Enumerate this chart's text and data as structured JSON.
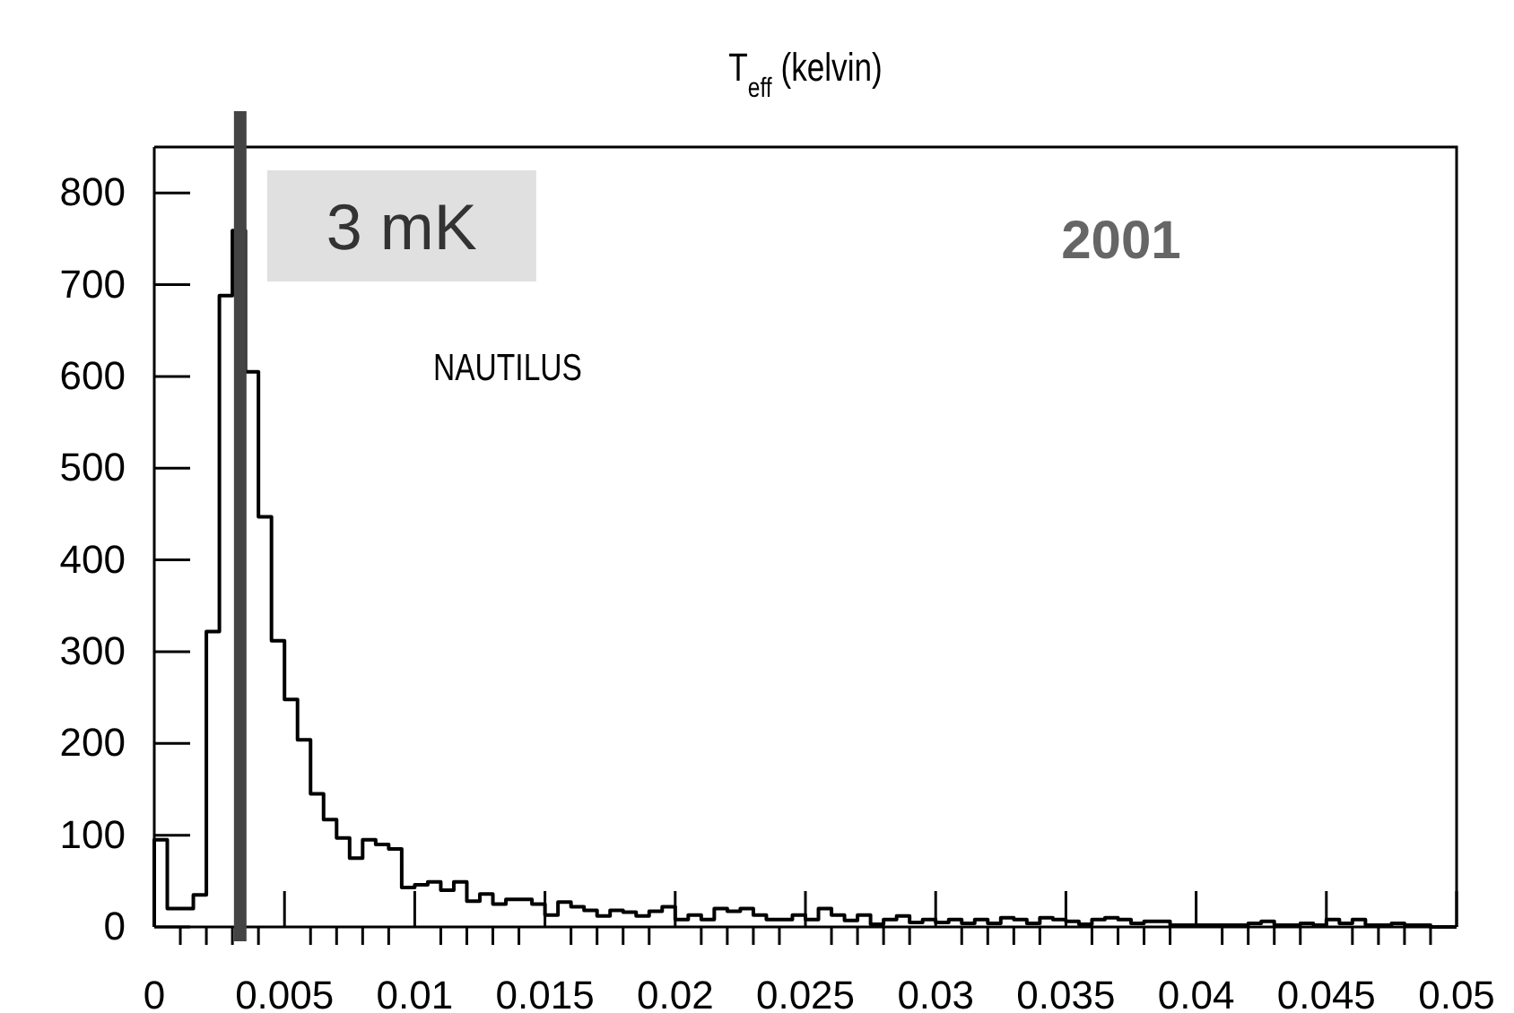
{
  "chart_data": {
    "type": "histogram",
    "title": "T$_{eff}$ (kelvin)",
    "color": "#000000",
    "bins": [
      0,
      0.0005,
      0.001,
      0.0015,
      0.002,
      0.0025,
      0.003,
      0.0035,
      0.004,
      0.0045,
      0.005,
      0.0055,
      0.006,
      0.0065,
      0.007,
      0.0075,
      0.008,
      0.0085,
      0.009,
      0.0095,
      0.01,
      0.0105,
      0.011,
      0.0115,
      0.012,
      0.0125,
      0.013,
      0.0135,
      0.014,
      0.0145,
      0.015,
      0.0155,
      0.016,
      0.0165,
      0.017,
      0.0175,
      0.018,
      0.0185,
      0.019,
      0.0195,
      0.02,
      0.0205,
      0.021,
      0.0215,
      0.022,
      0.0225,
      0.023,
      0.0235,
      0.024,
      0.0245,
      0.025,
      0.0255,
      0.026,
      0.0265,
      0.027,
      0.0275,
      0.028,
      0.0285,
      0.029,
      0.0295,
      0.03,
      0.0305,
      0.031,
      0.0315,
      0.032,
      0.0325,
      0.033,
      0.0335,
      0.034,
      0.0345,
      0.035,
      0.0355,
      0.036,
      0.0365,
      0.037,
      0.0375,
      0.038,
      0.0385,
      0.039,
      0.0395,
      0.04,
      0.0405,
      0.041,
      0.0415,
      0.042,
      0.0425,
      0.043,
      0.0435,
      0.044,
      0.0445,
      0.045,
      0.0455,
      0.046,
      0.0465,
      0.047,
      0.0475,
      0.048,
      0.0485,
      0.049,
      0.0495,
      0.05
    ],
    "values": [
      95,
      20,
      20,
      35,
      322,
      688,
      759,
      605,
      447,
      312,
      248,
      204,
      145,
      117,
      97,
      75,
      95,
      90,
      85,
      43,
      46,
      49,
      40,
      49,
      28,
      36,
      25,
      30,
      30,
      25,
      13,
      27,
      22,
      18,
      12,
      18,
      16,
      12,
      17,
      22,
      8,
      13,
      8,
      20,
      17,
      20,
      13,
      8,
      8,
      13,
      8,
      20,
      13,
      7,
      13,
      3,
      8,
      12,
      5,
      8,
      5,
      8,
      4,
      8,
      4,
      10,
      8,
      4,
      10,
      8,
      6,
      3,
      8,
      10,
      8,
      4,
      6,
      6,
      2,
      2,
      2,
      2,
      2,
      2,
      4,
      6,
      2,
      2,
      4,
      2,
      8,
      4,
      8,
      2,
      2,
      4,
      2,
      2,
      0,
      0
    ],
    "xlim": [
      0,
      0.05
    ],
    "xticks": [
      0,
      {
        "value": 0.001,
        "label": null
      },
      {
        "value": 0.002,
        "label": null
      },
      {
        "value": 0.003,
        "label": null
      },
      {
        "value": 0.004,
        "label": null
      },
      0.005,
      {
        "value": 0.006,
        "label": null
      },
      {
        "value": 0.007,
        "label": null
      },
      {
        "value": 0.008,
        "label": null
      },
      {
        "value": 0.009,
        "label": null
      },
      0.01,
      {
        "value": 0.011,
        "label": null
      },
      {
        "value": 0.012,
        "label": null
      },
      {
        "value": 0.013,
        "label": null
      },
      {
        "value": 0.014,
        "label": null
      },
      0.015,
      {
        "value": 0.016,
        "label": null
      },
      {
        "value": 0.017,
        "label": null
      },
      {
        "value": 0.018,
        "label": null
      },
      {
        "value": 0.019,
        "label": null
      },
      0.02,
      {
        "value": 0.021,
        "label": null
      },
      {
        "value": 0.022,
        "label": null
      },
      {
        "value": 0.023,
        "label": null
      },
      {
        "value": 0.024,
        "label": null
      },
      0.025,
      {
        "value": 0.026,
        "label": null
      },
      {
        "value": 0.027,
        "label": null
      },
      {
        "value": 0.028,
        "label": null
      },
      {
        "value": 0.029,
        "label": null
      },
      0.03,
      {
        "value": 0.031,
        "label": null
      },
      {
        "value": 0.032,
        "label": null
      },
      {
        "value": 0.033,
        "label": null
      },
      {
        "value": 0.034,
        "label": null
      },
      0.035,
      {
        "value": 0.036,
        "label": null
      },
      {
        "value": 0.037,
        "label": null
      },
      {
        "value": 0.038,
        "label": null
      },
      {
        "value": 0.039,
        "label": null
      },
      0.04,
      {
        "value": 0.041,
        "label": null
      },
      {
        "value": 0.042,
        "label": null
      },
      {
        "value": 0.043,
        "label": null
      },
      {
        "value": 0.044,
        "label": null
      },
      0.045,
      {
        "value": 0.046,
        "label": null
      },
      {
        "value": 0.047,
        "label": null
      },
      {
        "value": 0.048,
        "label": null
      },
      {
        "value": 0.049,
        "label": null
      },
      0.05
    ],
    "ylim": [
      0,
      850
    ],
    "yticks": [
      0,
      100,
      200,
      300,
      400,
      500,
      600,
      700,
      800
    ],
    "ref_lines": [
      {
        "axis": "x",
        "value": 0.0033,
        "label": "3 mK",
        "color": "#444444"
      }
    ],
    "annotations": [
      "NAUTILUS",
      "2001"
    ]
  }
}
